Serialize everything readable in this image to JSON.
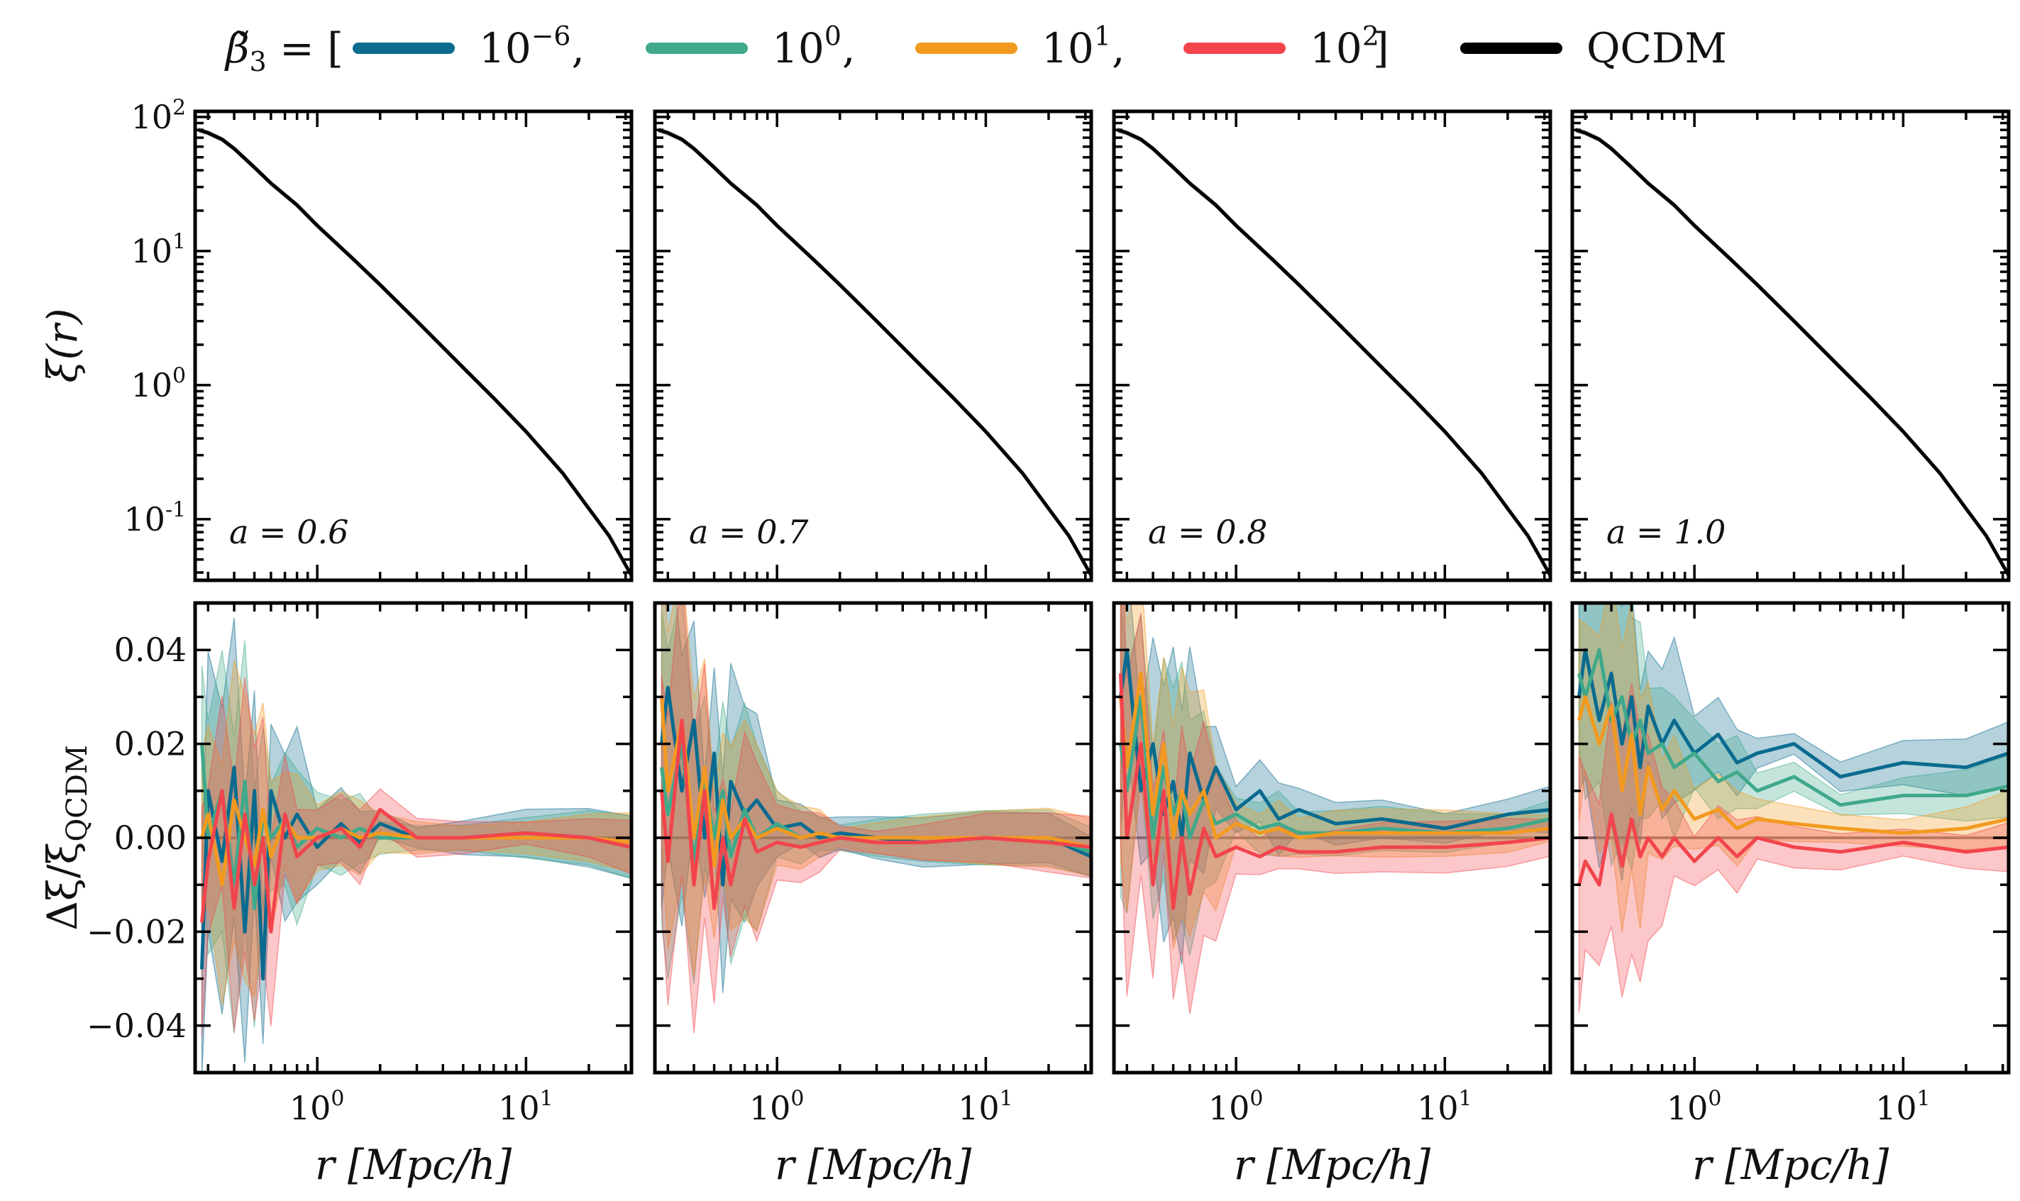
{
  "legend": {
    "prefix_symbol": "β̃",
    "prefix_sub": "3",
    "prefix_eq": " = [",
    "closing_bracket": "]",
    "entries": [
      {
        "label_base": "10",
        "label_exp": "−6",
        "label_tail": ",",
        "color": "#0a6b8f"
      },
      {
        "label_base": "10",
        "label_exp": "0",
        "label_tail": ",",
        "color": "#3fa98a"
      },
      {
        "label_base": "10",
        "label_exp": "1",
        "label_tail": ",",
        "color": "#f29a1f"
      },
      {
        "label_base": "10",
        "label_exp": "2",
        "label_tail": "",
        "color": "#f2444c"
      },
      {
        "label_base": "QCDM",
        "label_exp": "",
        "label_tail": "",
        "color": "#000000"
      }
    ]
  },
  "axis_text": {
    "top_ylabel_main": "ξ(r)",
    "bottom_ylabel_main": "Δξ/ξ",
    "bottom_ylabel_sub": "QCDM",
    "xlabel": "r   [Mpc/h]"
  },
  "chart_data": {
    "type": "line",
    "x_scale": "log",
    "xlim": [
      0.26,
      32
    ],
    "x_ticks": [
      {
        "value": 1,
        "base": "10",
        "exp": "0"
      },
      {
        "value": 10,
        "base": "10",
        "exp": "1"
      }
    ],
    "top_row": {
      "y_scale": "log",
      "ylim": [
        0.035,
        110
      ],
      "y_ticks": [
        {
          "value": 100,
          "base": "10",
          "exp": "2"
        },
        {
          "value": 10,
          "base": "10",
          "exp": "1"
        },
        {
          "value": 1,
          "base": "10",
          "exp": "0"
        },
        {
          "value": 0.1,
          "base": "10",
          "exp": "-1"
        }
      ],
      "qcdm_r": [
        0.27,
        0.3,
        0.35,
        0.4,
        0.5,
        0.6,
        0.8,
        1.0,
        1.5,
        2.0,
        3.0,
        5.0,
        7.0,
        10.0,
        15.0,
        20.0,
        25.0,
        32.0
      ],
      "qcdm_xi": [
        80,
        76,
        68,
        58,
        42,
        32,
        22,
        15.5,
        8.6,
        5.6,
        3.0,
        1.35,
        0.8,
        0.45,
        0.22,
        0.12,
        0.075,
        0.038
      ]
    },
    "bottom_row": {
      "y_scale": "linear",
      "ylim": [
        -0.05,
        0.05
      ],
      "y_ticks": [
        0.04,
        0.02,
        0.0,
        -0.02,
        -0.04
      ],
      "y_tick_labels": [
        "0.04",
        "0.02",
        "0.00",
        "−0.02",
        "−0.04"
      ]
    },
    "panels": [
      {
        "annotation": "a = 0.6",
        "series": [
          {
            "r": [
              0.28,
              0.3,
              0.35,
              0.4,
              0.45,
              0.5,
              0.55,
              0.6,
              0.7,
              0.8,
              1.0,
              1.3,
              1.6,
              2.0,
              3.0,
              5.0,
              10.0,
              20.0,
              32.0
            ],
            "y": [
              -0.028,
              0.01,
              -0.005,
              0.015,
              -0.02,
              0.01,
              -0.03,
              0.01,
              0.0,
              0.005,
              -0.002,
              0.003,
              -0.001,
              0.003,
              0.0,
              0.0,
              0.001,
              0.0,
              -0.002
            ]
          },
          {
            "r": [
              0.28,
              0.3,
              0.35,
              0.4,
              0.45,
              0.5,
              0.55,
              0.6,
              0.7,
              0.8,
              1.0,
              1.3,
              1.6,
              2.0,
              3.0,
              5.0,
              10.0,
              20.0,
              32.0
            ],
            "y": [
              0.02,
              0.0,
              0.01,
              -0.01,
              0.012,
              -0.015,
              0.005,
              0.0,
              0.004,
              -0.002,
              0.002,
              0.0,
              0.002,
              0.0,
              0.0,
              0.0,
              0.0,
              0.0,
              -0.002
            ]
          },
          {
            "r": [
              0.28,
              0.3,
              0.35,
              0.4,
              0.45,
              0.5,
              0.55,
              0.6,
              0.7,
              0.8,
              1.0,
              1.3,
              1.6,
              2.0,
              3.0,
              5.0,
              10.0,
              20.0,
              32.0
            ],
            "y": [
              0.0,
              0.005,
              -0.01,
              0.008,
              0.0,
              -0.006,
              0.006,
              -0.004,
              0.004,
              0.0,
              0.0,
              0.002,
              0.0,
              0.001,
              0.0,
              0.0,
              0.0,
              0.0,
              -0.001
            ]
          },
          {
            "r": [
              0.28,
              0.3,
              0.35,
              0.4,
              0.45,
              0.5,
              0.55,
              0.6,
              0.7,
              0.8,
              1.0,
              1.3,
              1.6,
              2.0,
              3.0,
              5.0,
              10.0,
              20.0,
              32.0
            ],
            "y": [
              -0.018,
              -0.005,
              0.01,
              -0.015,
              0.005,
              -0.01,
              0.0,
              -0.02,
              0.005,
              -0.004,
              0.0,
              0.002,
              -0.002,
              0.006,
              0.0,
              0.0,
              0.001,
              0.0,
              -0.002
            ]
          }
        ]
      },
      {
        "annotation": "a = 0.7",
        "series": [
          {
            "r": [
              0.28,
              0.3,
              0.35,
              0.4,
              0.45,
              0.5,
              0.55,
              0.6,
              0.7,
              0.8,
              1.0,
              1.3,
              1.6,
              2.0,
              3.0,
              5.0,
              10.0,
              20.0,
              32.0
            ],
            "y": [
              0.02,
              0.032,
              0.01,
              0.025,
              0.0,
              0.018,
              -0.01,
              0.012,
              0.005,
              0.008,
              0.002,
              0.003,
              0.0,
              0.001,
              0.0,
              -0.001,
              0.0,
              0.0,
              -0.004
            ]
          },
          {
            "r": [
              0.28,
              0.3,
              0.35,
              0.4,
              0.45,
              0.5,
              0.55,
              0.6,
              0.7,
              0.8,
              1.0,
              1.3,
              1.6,
              2.0,
              3.0,
              5.0,
              10.0,
              20.0,
              32.0
            ],
            "y": [
              0.015,
              0.005,
              0.02,
              -0.005,
              0.012,
              0.0,
              0.01,
              -0.004,
              0.006,
              0.0,
              0.003,
              0.0,
              0.001,
              0.0,
              0.0,
              0.0,
              0.0,
              0.0,
              -0.003
            ]
          },
          {
            "r": [
              0.28,
              0.3,
              0.35,
              0.4,
              0.45,
              0.5,
              0.55,
              0.6,
              0.7,
              0.8,
              1.0,
              1.3,
              1.6,
              2.0,
              3.0,
              5.0,
              10.0,
              20.0,
              32.0
            ],
            "y": [
              0.03,
              0.01,
              0.025,
              0.0,
              0.015,
              -0.006,
              0.008,
              0.0,
              0.004,
              0.0,
              0.002,
              0.0,
              0.001,
              0.0,
              0.0,
              0.0,
              0.0,
              0.0,
              -0.002
            ]
          },
          {
            "r": [
              0.28,
              0.3,
              0.35,
              0.4,
              0.45,
              0.5,
              0.55,
              0.6,
              0.7,
              0.8,
              1.0,
              1.3,
              1.6,
              2.0,
              3.0,
              5.0,
              10.0,
              20.0,
              32.0
            ],
            "y": [
              0.01,
              -0.005,
              0.025,
              -0.01,
              0.01,
              -0.015,
              0.0,
              -0.01,
              0.004,
              -0.003,
              -0.001,
              -0.002,
              -0.001,
              0.0,
              -0.001,
              -0.001,
              0.0,
              -0.001,
              -0.002
            ]
          }
        ]
      },
      {
        "annotation": "a = 0.8",
        "series": [
          {
            "r": [
              0.28,
              0.3,
              0.35,
              0.4,
              0.45,
              0.5,
              0.55,
              0.6,
              0.7,
              0.8,
              1.0,
              1.3,
              1.6,
              2.0,
              3.0,
              5.0,
              10.0,
              20.0,
              32.0
            ],
            "y": [
              0.03,
              0.04,
              0.01,
              0.02,
              0.005,
              0.012,
              0.0,
              0.018,
              0.008,
              0.015,
              0.006,
              0.01,
              0.004,
              0.006,
              0.003,
              0.004,
              0.002,
              0.005,
              0.006
            ]
          },
          {
            "r": [
              0.28,
              0.3,
              0.35,
              0.4,
              0.45,
              0.5,
              0.55,
              0.6,
              0.7,
              0.8,
              1.0,
              1.3,
              1.6,
              2.0,
              3.0,
              5.0,
              10.0,
              20.0,
              32.0
            ],
            "y": [
              0.02,
              0.01,
              0.03,
              0.0,
              0.015,
              0.005,
              0.01,
              0.0,
              0.008,
              0.003,
              0.005,
              0.002,
              0.003,
              0.001,
              0.001,
              0.002,
              0.001,
              0.002,
              0.004
            ]
          },
          {
            "r": [
              0.28,
              0.3,
              0.35,
              0.4,
              0.45,
              0.5,
              0.55,
              0.6,
              0.7,
              0.8,
              1.0,
              1.3,
              1.6,
              2.0,
              3.0,
              5.0,
              10.0,
              20.0,
              32.0
            ],
            "y": [
              0.03,
              0.015,
              0.035,
              0.005,
              0.02,
              0.0,
              0.01,
              0.005,
              0.01,
              0.0,
              0.003,
              0.001,
              0.002,
              0.0,
              0.001,
              0.001,
              0.001,
              0.001,
              0.002
            ]
          },
          {
            "r": [
              0.28,
              0.3,
              0.35,
              0.4,
              0.45,
              0.5,
              0.55,
              0.6,
              0.7,
              0.8,
              1.0,
              1.3,
              1.6,
              2.0,
              3.0,
              5.0,
              10.0,
              20.0,
              32.0
            ],
            "y": [
              0.035,
              0.0,
              0.02,
              -0.01,
              0.01,
              -0.015,
              0.0,
              -0.012,
              0.002,
              -0.004,
              -0.002,
              -0.004,
              -0.002,
              -0.003,
              -0.003,
              -0.002,
              -0.002,
              -0.001,
              0.0
            ]
          }
        ]
      },
      {
        "annotation": "a = 1.0",
        "series": [
          {
            "r": [
              0.28,
              0.3,
              0.35,
              0.4,
              0.45,
              0.5,
              0.55,
              0.6,
              0.7,
              0.8,
              1.0,
              1.3,
              1.6,
              2.0,
              3.0,
              5.0,
              10.0,
              20.0,
              32.0
            ],
            "y": [
              0.03,
              0.04,
              0.025,
              0.035,
              0.02,
              0.03,
              0.015,
              0.028,
              0.02,
              0.025,
              0.018,
              0.022,
              0.016,
              0.018,
              0.02,
              0.013,
              0.016,
              0.015,
              0.018
            ]
          },
          {
            "r": [
              0.28,
              0.3,
              0.35,
              0.4,
              0.45,
              0.5,
              0.55,
              0.6,
              0.7,
              0.8,
              1.0,
              1.3,
              1.6,
              2.0,
              3.0,
              5.0,
              10.0,
              20.0,
              32.0
            ],
            "y": [
              0.035,
              0.03,
              0.04,
              0.025,
              0.03,
              0.02,
              0.025,
              0.018,
              0.02,
              0.015,
              0.018,
              0.012,
              0.014,
              0.01,
              0.013,
              0.007,
              0.009,
              0.009,
              0.011
            ]
          },
          {
            "r": [
              0.28,
              0.3,
              0.35,
              0.4,
              0.45,
              0.5,
              0.55,
              0.6,
              0.7,
              0.8,
              1.0,
              1.3,
              1.6,
              2.0,
              3.0,
              5.0,
              10.0,
              20.0,
              32.0
            ],
            "y": [
              0.025,
              0.03,
              0.02,
              0.028,
              0.01,
              0.022,
              0.005,
              0.015,
              0.006,
              0.01,
              0.004,
              0.006,
              0.002,
              0.004,
              0.003,
              0.002,
              0.001,
              0.002,
              0.004
            ]
          },
          {
            "r": [
              0.28,
              0.3,
              0.35,
              0.4,
              0.45,
              0.5,
              0.55,
              0.6,
              0.7,
              0.8,
              1.0,
              1.3,
              1.6,
              2.0,
              3.0,
              5.0,
              10.0,
              20.0,
              32.0
            ],
            "y": [
              -0.01,
              -0.005,
              -0.01,
              0.005,
              -0.006,
              0.004,
              -0.004,
              0.0,
              -0.004,
              0.0,
              -0.005,
              0.0,
              -0.004,
              0.0,
              -0.002,
              -0.003,
              -0.001,
              -0.003,
              -0.002
            ]
          }
        ]
      }
    ]
  }
}
